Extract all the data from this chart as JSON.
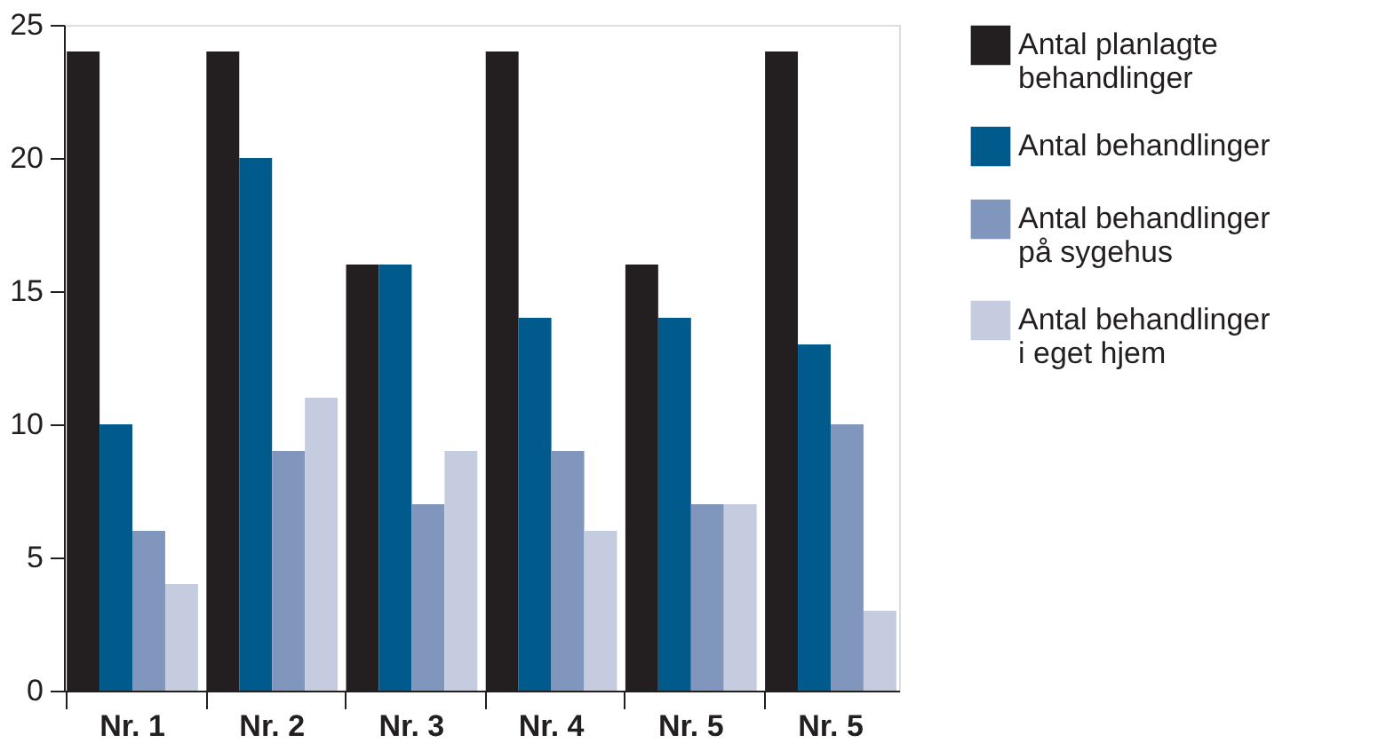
{
  "chart_data": {
    "type": "bar",
    "categories": [
      "Nr. 1",
      "Nr. 2",
      "Nr. 3",
      "Nr. 4",
      "Nr. 5",
      "Nr. 5"
    ],
    "series": [
      {
        "name": "Antal planlagte behandlinger",
        "color": "#231f20",
        "values": [
          24,
          24,
          16,
          24,
          16,
          24
        ]
      },
      {
        "name": "Antal behandlinger",
        "color": "#005a8c",
        "values": [
          10,
          20,
          16,
          14,
          14,
          13
        ]
      },
      {
        "name": "Antal behandlinger på sygehus",
        "color": "#8096bd",
        "values": [
          6,
          9,
          7,
          9,
          7,
          10
        ]
      },
      {
        "name": "Antal behandlinger i eget hjem",
        "color": "#c5cce0",
        "values": [
          4,
          11,
          9,
          6,
          7,
          3
        ]
      }
    ],
    "ylim": [
      0,
      25
    ],
    "yticks": [
      0,
      5,
      10,
      15,
      20,
      25
    ],
    "grid": false,
    "legend": "right"
  }
}
